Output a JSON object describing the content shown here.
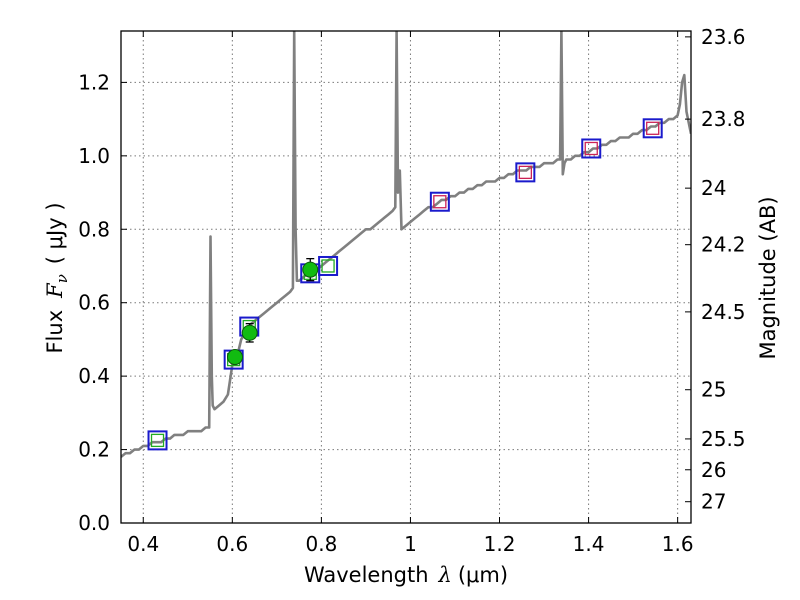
{
  "chart_data": {
    "type": "line",
    "title": "",
    "xlabel": {
      "main": "Wavelength",
      "symbol": "λ",
      "unit": "(μm)"
    },
    "ylabel": {
      "main": "Flux",
      "symbol": "Fν",
      "symbol_base": "F",
      "symbol_sub": "ν",
      "unit": "( μJy )"
    },
    "ylabel_right": "Magnitude (AB)",
    "xlim": [
      0.35,
      1.63
    ],
    "ylim": [
      0.0,
      1.34
    ],
    "grid": true,
    "x_ticks": [
      {
        "value": 0.4,
        "label": "0.4"
      },
      {
        "value": 0.6,
        "label": "0.6"
      },
      {
        "value": 0.8,
        "label": "0.8"
      },
      {
        "value": 1.0,
        "label": "1"
      },
      {
        "value": 1.2,
        "label": "1.2"
      },
      {
        "value": 1.4,
        "label": "1.4"
      },
      {
        "value": 1.6,
        "label": "1.6"
      }
    ],
    "y_ticks": [
      {
        "value": 0.0,
        "label": "0.0"
      },
      {
        "value": 0.2,
        "label": "0.2"
      },
      {
        "value": 0.4,
        "label": "0.4"
      },
      {
        "value": 0.6,
        "label": "0.6"
      },
      {
        "value": 0.8,
        "label": "0.8"
      },
      {
        "value": 1.0,
        "label": "1.0"
      },
      {
        "value": 1.2,
        "label": "1.2"
      }
    ],
    "magnitude_ticks": [
      {
        "flux": 1.324,
        "label": "23.6"
      },
      {
        "flux": 1.1,
        "label": "23.8"
      },
      {
        "flux": 0.912,
        "label": "24"
      },
      {
        "flux": 0.758,
        "label": "24.2"
      },
      {
        "flux": 0.575,
        "label": "24.5"
      },
      {
        "flux": 0.363,
        "label": "25"
      },
      {
        "flux": 0.229,
        "label": "25.5"
      },
      {
        "flux": 0.145,
        "label": "26"
      },
      {
        "flux": 0.058,
        "label": "27"
      }
    ],
    "colors": {
      "spectrum": "#808080",
      "model_box_outer": "#1a1acc",
      "model_box_green": "#22aa22",
      "model_box_red": "#cc2255",
      "observed_fill": "#11bb11",
      "observed_edge": "#0a5a0a",
      "grid": "#7a7a7a",
      "axis": "#000000"
    },
    "series": [
      {
        "name": "model spectrum",
        "kind": "line",
        "color": "#808080",
        "x": [
          0.35,
          0.36,
          0.37,
          0.38,
          0.39,
          0.4,
          0.41,
          0.42,
          0.43,
          0.44,
          0.45,
          0.46,
          0.47,
          0.48,
          0.49,
          0.5,
          0.51,
          0.52,
          0.53,
          0.54,
          0.548,
          0.551,
          0.554,
          0.556,
          0.56,
          0.57,
          0.58,
          0.59,
          0.6,
          0.61,
          0.62,
          0.63,
          0.64,
          0.65,
          0.66,
          0.67,
          0.68,
          0.69,
          0.7,
          0.71,
          0.72,
          0.73,
          0.736,
          0.739,
          0.742,
          0.745,
          0.75,
          0.76,
          0.77,
          0.78,
          0.79,
          0.8,
          0.81,
          0.82,
          0.83,
          0.84,
          0.85,
          0.86,
          0.87,
          0.88,
          0.89,
          0.9,
          0.91,
          0.92,
          0.93,
          0.94,
          0.95,
          0.96,
          0.966,
          0.969,
          0.972,
          0.976,
          0.98,
          0.99,
          1.0,
          1.01,
          1.02,
          1.03,
          1.04,
          1.05,
          1.06,
          1.07,
          1.08,
          1.09,
          1.1,
          1.11,
          1.12,
          1.13,
          1.14,
          1.15,
          1.16,
          1.17,
          1.18,
          1.19,
          1.2,
          1.21,
          1.22,
          1.23,
          1.24,
          1.25,
          1.26,
          1.27,
          1.28,
          1.29,
          1.3,
          1.31,
          1.32,
          1.33,
          1.336,
          1.339,
          1.342,
          1.346,
          1.35,
          1.36,
          1.37,
          1.38,
          1.39,
          1.4,
          1.41,
          1.42,
          1.43,
          1.44,
          1.45,
          1.46,
          1.47,
          1.48,
          1.49,
          1.5,
          1.51,
          1.52,
          1.53,
          1.54,
          1.55,
          1.56,
          1.57,
          1.58,
          1.59,
          1.6,
          1.605,
          1.61,
          1.615,
          1.62,
          1.63
        ],
        "y": [
          0.18,
          0.19,
          0.19,
          0.2,
          0.2,
          0.21,
          0.21,
          0.22,
          0.22,
          0.22,
          0.23,
          0.23,
          0.24,
          0.24,
          0.24,
          0.25,
          0.25,
          0.25,
          0.25,
          0.26,
          0.26,
          0.78,
          0.4,
          0.32,
          0.31,
          0.32,
          0.33,
          0.35,
          0.43,
          0.45,
          0.5,
          0.52,
          0.54,
          0.55,
          0.56,
          0.57,
          0.58,
          0.59,
          0.6,
          0.61,
          0.62,
          0.63,
          0.64,
          1.34,
          0.8,
          0.66,
          0.66,
          0.67,
          0.68,
          0.69,
          0.69,
          0.7,
          0.71,
          0.72,
          0.73,
          0.74,
          0.75,
          0.76,
          0.77,
          0.78,
          0.79,
          0.8,
          0.8,
          0.81,
          0.82,
          0.83,
          0.84,
          0.85,
          0.86,
          1.34,
          0.9,
          0.96,
          0.8,
          0.81,
          0.82,
          0.83,
          0.84,
          0.85,
          0.86,
          0.86,
          0.87,
          0.88,
          0.88,
          0.89,
          0.89,
          0.9,
          0.9,
          0.91,
          0.91,
          0.92,
          0.92,
          0.93,
          0.93,
          0.93,
          0.94,
          0.94,
          0.95,
          0.95,
          0.96,
          0.96,
          0.96,
          0.97,
          0.97,
          0.97,
          0.98,
          0.98,
          0.98,
          0.99,
          0.99,
          1.34,
          0.95,
          0.98,
          0.99,
          0.99,
          1.0,
          1.0,
          1.01,
          1.01,
          1.02,
          1.02,
          1.03,
          1.03,
          1.04,
          1.04,
          1.05,
          1.05,
          1.05,
          1.06,
          1.06,
          1.07,
          1.07,
          1.08,
          1.08,
          1.09,
          1.09,
          1.1,
          1.1,
          1.11,
          1.14,
          1.2,
          1.22,
          1.12,
          1.06
        ]
      },
      {
        "name": "model photometry (green)",
        "kind": "box",
        "x": [
          0.432,
          0.603,
          0.638,
          0.775,
          0.815
        ],
        "y": [
          0.225,
          0.445,
          0.535,
          0.68,
          0.7
        ]
      },
      {
        "name": "model photometry (red)",
        "kind": "box",
        "x": [
          1.066,
          1.258,
          1.406,
          1.544
        ],
        "y": [
          0.875,
          0.955,
          1.02,
          1.075
        ]
      },
      {
        "name": "observed photometry",
        "kind": "point",
        "x": [
          0.606,
          0.639,
          0.775
        ],
        "y": [
          0.452,
          0.518,
          0.69
        ],
        "yerr": [
          0.012,
          0.025,
          0.03
        ]
      }
    ]
  }
}
